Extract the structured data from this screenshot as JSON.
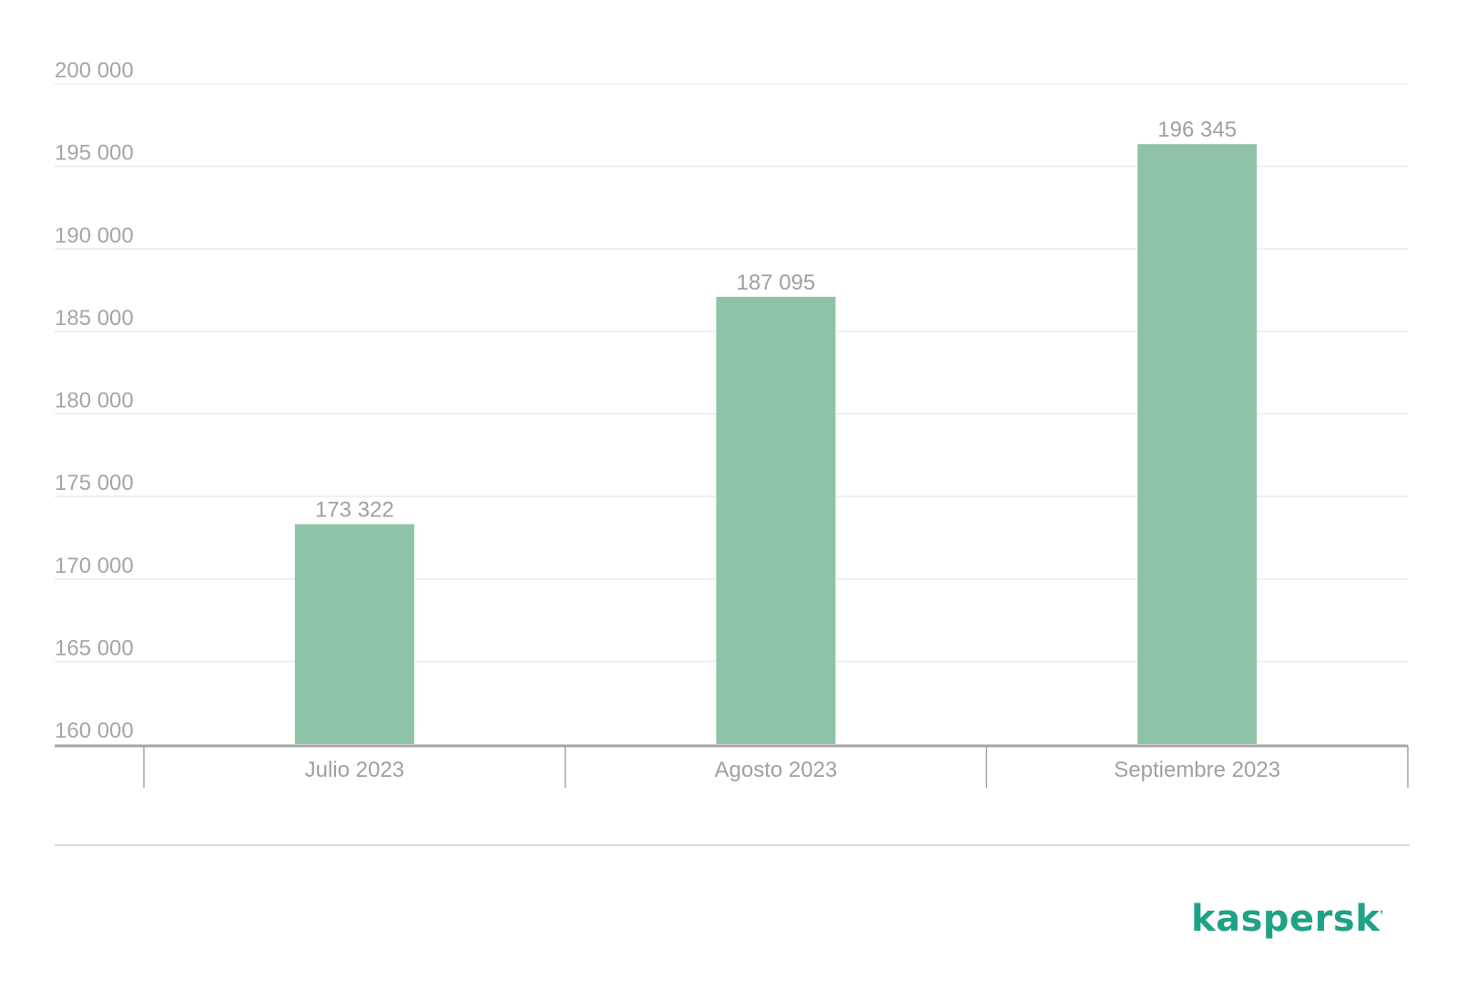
{
  "chart_data": {
    "type": "bar",
    "categories": [
      "Julio 2023",
      "Agosto 2023",
      "Septiembre 2023"
    ],
    "values": [
      173322,
      187095,
      196345
    ],
    "value_labels": [
      "173 322",
      "187 095",
      "196 345"
    ],
    "title": "",
    "xlabel": "",
    "ylabel": "",
    "ylim": [
      160000,
      200000
    ],
    "yticks": [
      160000,
      165000,
      170000,
      175000,
      180000,
      185000,
      190000,
      195000,
      200000
    ],
    "ytick_labels": [
      "160 000",
      "165 000",
      "170 000",
      "175 000",
      "180 000",
      "185 000",
      "190 000",
      "195 000",
      "200 000"
    ],
    "grid": true,
    "bar_color": "#8fc3a7"
  },
  "logo": {
    "text": "kaspersky",
    "color": "#1fa286"
  }
}
